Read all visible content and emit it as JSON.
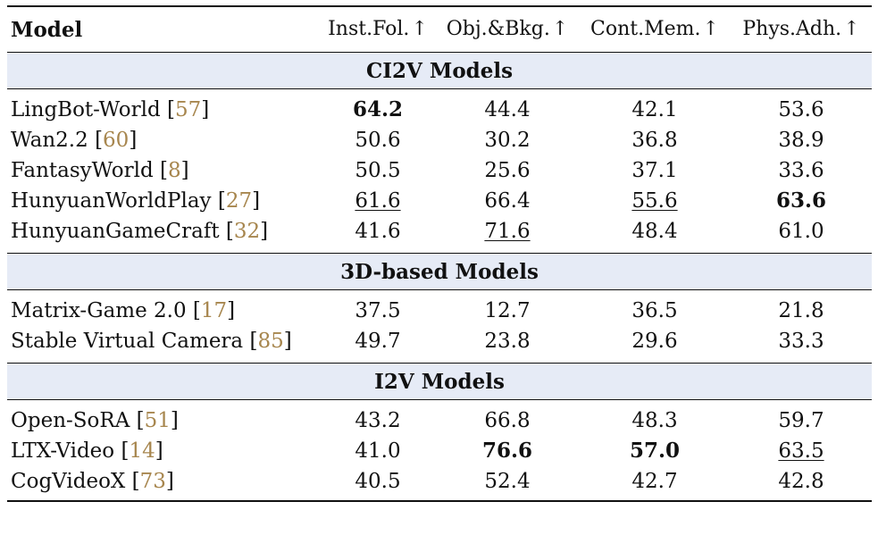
{
  "table": {
    "headers": {
      "model": "Model",
      "columns": [
        {
          "label": "Inst.Fol.",
          "arrow": "↑"
        },
        {
          "label": "Obj.&Bkg.",
          "arrow": "↑"
        },
        {
          "label": "Cont.Mem.",
          "arrow": "↑"
        },
        {
          "label": "Phys.Adh.",
          "arrow": "↑"
        }
      ]
    },
    "sections": [
      {
        "title": "CI2V Models",
        "rows": [
          {
            "model": "LingBot-World",
            "ref": "57",
            "values": [
              "64.2",
              "44.4",
              "42.1",
              "53.6"
            ],
            "styles": [
              "best",
              "",
              "",
              ""
            ]
          },
          {
            "model": "Wan2.2",
            "ref": "60",
            "values": [
              "50.6",
              "30.2",
              "36.8",
              "38.9"
            ],
            "styles": [
              "",
              "",
              "",
              ""
            ]
          },
          {
            "model": "FantasyWorld",
            "ref": "8",
            "values": [
              "50.5",
              "25.6",
              "37.1",
              "33.6"
            ],
            "styles": [
              "",
              "",
              "",
              ""
            ]
          },
          {
            "model": "HunyuanWorldPlay",
            "ref": "27",
            "values": [
              "61.6",
              "66.4",
              "55.6",
              "63.6"
            ],
            "styles": [
              "second",
              "",
              "second",
              "best"
            ]
          },
          {
            "model": "HunyuanGameCraft",
            "ref": "32",
            "values": [
              "41.6",
              "71.6",
              "48.4",
              "61.0"
            ],
            "styles": [
              "",
              "second",
              "",
              ""
            ]
          }
        ]
      },
      {
        "title": "3D-based Models",
        "rows": [
          {
            "model": "Matrix-Game 2.0",
            "ref": "17",
            "values": [
              "37.5",
              "12.7",
              "36.5",
              "21.8"
            ],
            "styles": [
              "",
              "",
              "",
              ""
            ]
          },
          {
            "model": "Stable Virtual Camera",
            "ref": "85",
            "values": [
              "49.7",
              "23.8",
              "29.6",
              "33.3"
            ],
            "styles": [
              "",
              "",
              "",
              ""
            ]
          }
        ]
      },
      {
        "title": "I2V Models",
        "rows": [
          {
            "model": "Open-SoRA",
            "ref": "51",
            "values": [
              "43.2",
              "66.8",
              "48.3",
              "59.7"
            ],
            "styles": [
              "",
              "",
              "",
              ""
            ]
          },
          {
            "model": "LTX-Video",
            "ref": "14",
            "values": [
              "41.0",
              "76.6",
              "57.0",
              "63.5"
            ],
            "styles": [
              "",
              "best",
              "best",
              "second"
            ]
          },
          {
            "model": "CogVideoX",
            "ref": "73",
            "values": [
              "40.5",
              "52.4",
              "42.7",
              "42.8"
            ],
            "styles": [
              "",
              "",
              "",
              ""
            ]
          }
        ]
      }
    ]
  },
  "colors": {
    "section_background": "#e6ebf6",
    "reference_link": "#a7864e",
    "rule": "#111111"
  }
}
